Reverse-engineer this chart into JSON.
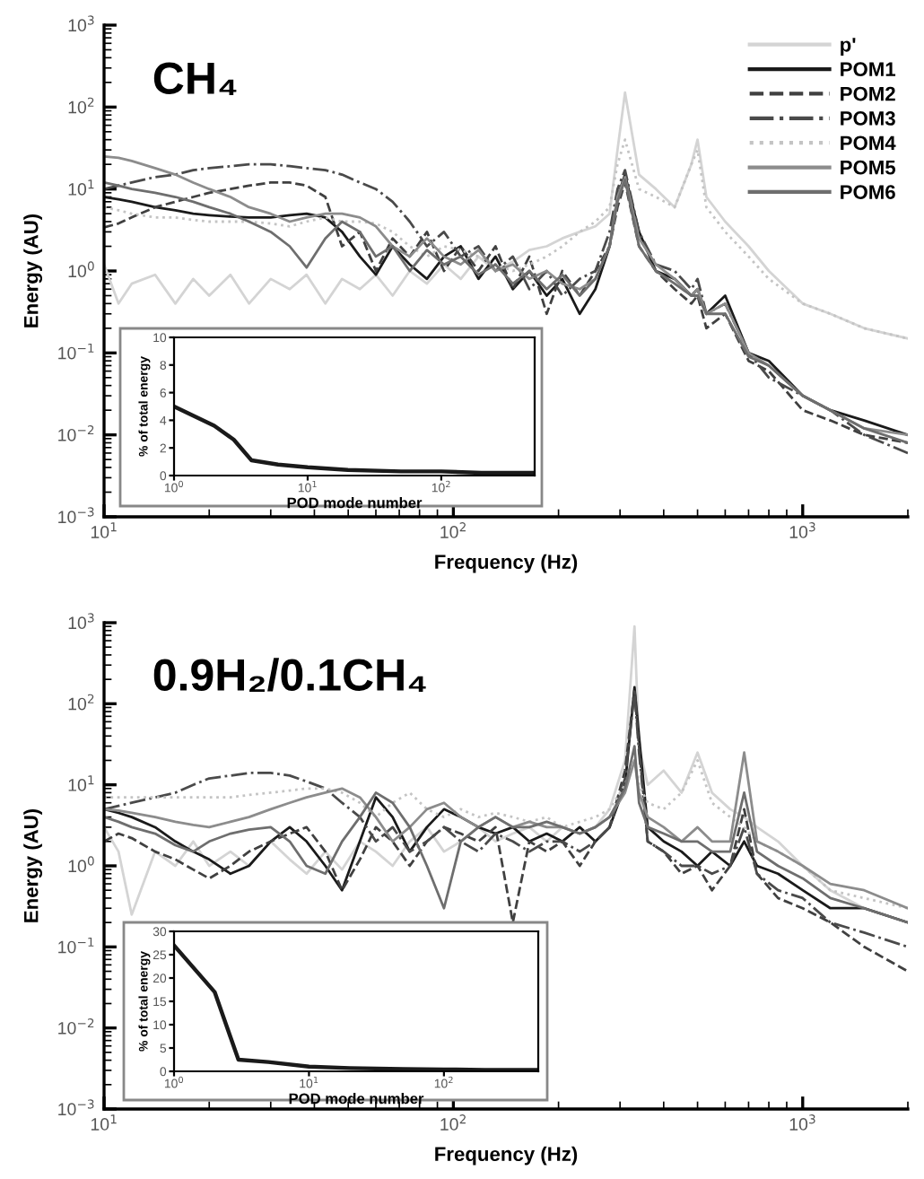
{
  "chart_data": [
    {
      "type": "line",
      "title": "CH₄",
      "xlabel": "Frequency (Hz)",
      "ylabel": "Energy (AU)",
      "log": "xy",
      "legend": "top right",
      "xlim": [
        10,
        2000
      ],
      "ylim": [
        0.001,
        1000
      ],
      "xticks": [
        {
          "value": 10,
          "label": "10$^{1}$"
        },
        {
          "value": 100,
          "label": "10$^{2}$"
        },
        {
          "value": 1000,
          "label": "10$^{3}$"
        }
      ],
      "yticks": [
        {
          "value": 0.001,
          "label": "10$^{−3}$"
        },
        {
          "value": 0.01,
          "label": "10$^{−2}$"
        },
        {
          "value": 0.1,
          "label": "10$^{−1}$"
        },
        {
          "value": 1,
          "label": "10$^{0}$"
        },
        {
          "value": 10,
          "label": "10$^{1}$"
        },
        {
          "value": 100,
          "label": "10$^{2}$"
        },
        {
          "value": 1000,
          "label": "10$^{3}$"
        }
      ],
      "x": [
        10,
        11,
        12,
        14,
        16,
        18,
        20,
        23,
        26,
        30,
        34,
        38,
        43,
        48,
        54,
        60,
        67,
        75,
        84,
        94,
        105,
        118,
        132,
        148,
        165,
        185,
        205,
        230,
        255,
        280,
        295,
        310,
        340,
        380,
        430,
        480,
        500,
        530,
        600,
        700,
        800,
        1000,
        1200,
        1500,
        2000
      ],
      "series": [
        {
          "name": "p'",
          "color": "#d4d4d4",
          "line_style": "solid",
          "values": [
            1.2,
            0.4,
            0.7,
            0.9,
            0.4,
            0.8,
            0.5,
            0.9,
            0.4,
            0.8,
            0.6,
            0.9,
            0.4,
            0.8,
            0.6,
            0.9,
            0.5,
            1.0,
            0.7,
            1.2,
            0.8,
            1.5,
            1.0,
            1.3,
            1.8,
            2.0,
            2.5,
            3,
            3.5,
            5,
            30,
            150,
            15,
            10,
            6,
            20,
            40,
            8,
            4,
            2,
            1,
            0.4,
            0.3,
            0.2,
            0.15
          ]
        },
        {
          "name": "POM1",
          "color": "#1a1a1a",
          "line_style": "solid",
          "values": [
            8,
            7.5,
            7,
            6,
            5.5,
            5,
            4.8,
            4.6,
            4.5,
            4.5,
            4.8,
            5,
            4.5,
            3,
            1.5,
            0.9,
            2,
            1.2,
            0.8,
            1.5,
            2,
            0.8,
            1.5,
            0.6,
            1,
            0.5,
            0.8,
            0.3,
            0.6,
            2,
            8,
            15,
            3,
            1,
            0.8,
            0.5,
            0.6,
            0.3,
            0.5,
            0.1,
            0.08,
            0.03,
            0.02,
            0.015,
            0.01
          ]
        },
        {
          "name": "POM2",
          "color": "#404040",
          "line_style": "dashed",
          "values": [
            3.4,
            3.8,
            4.5,
            6,
            7,
            8,
            9,
            10,
            11,
            12,
            12,
            11,
            8,
            2,
            3,
            1,
            2.5,
            1.5,
            3,
            1,
            2,
            1,
            2,
            0.6,
            1.5,
            0.3,
            1,
            0.5,
            1,
            2,
            6,
            12,
            2,
            1,
            0.6,
            0.4,
            0.5,
            0.2,
            0.3,
            0.08,
            0.06,
            0.02,
            0.015,
            0.01,
            0.008
          ]
        },
        {
          "name": "POM3",
          "color": "#4a4a4a",
          "line_style": "dashdot",
          "values": [
            10,
            11,
            12,
            14,
            15,
            17,
            18,
            19,
            20,
            20,
            19,
            18,
            17,
            15,
            12,
            10,
            7,
            4,
            2,
            3,
            1.5,
            2,
            1,
            1.5,
            0.6,
            1,
            0.5,
            0.8,
            1,
            3,
            10,
            17,
            3,
            1.2,
            1,
            0.6,
            0.8,
            0.3,
            0.4,
            0.1,
            0.05,
            0.03,
            0.02,
            0.01,
            0.006
          ]
        },
        {
          "name": "POM4",
          "color": "#c4c4c4",
          "line_style": "dotted",
          "values": [
            6,
            5.5,
            5,
            4.5,
            4.5,
            4.2,
            4,
            4,
            4,
            3.8,
            3.5,
            4,
            4.5,
            4,
            4,
            3.8,
            3,
            2,
            1.5,
            2,
            1.8,
            1.5,
            1.2,
            1,
            1.2,
            1.5,
            2,
            3,
            4,
            6,
            20,
            40,
            10,
            8,
            6,
            20,
            30,
            6,
            3,
            1.5,
            0.8,
            0.4,
            0.3,
            0.2,
            0.15
          ]
        },
        {
          "name": "POM5",
          "color": "#8c8c8c",
          "line_style": "solid",
          "values": [
            25,
            24,
            22,
            18,
            15,
            12,
            10,
            8,
            6,
            5,
            4,
            4.5,
            5,
            5,
            4.5,
            3.5,
            2,
            1.5,
            2.5,
            1.5,
            1.2,
            1.8,
            1,
            1.2,
            0.8,
            1,
            0.7,
            0.6,
            0.8,
            2,
            8,
            14,
            2.5,
            1.2,
            0.8,
            0.5,
            0.6,
            0.3,
            0.4,
            0.1,
            0.07,
            0.03,
            0.02,
            0.012,
            0.01
          ]
        },
        {
          "name": "POM6",
          "color": "#6e6e6e",
          "line_style": "solid",
          "values": [
            12,
            11,
            10,
            9,
            8,
            7,
            6,
            5,
            4,
            3,
            2,
            1.1,
            2.5,
            4,
            3,
            1.5,
            2,
            1,
            1.8,
            1.2,
            1.5,
            0.9,
            1.2,
            0.7,
            1,
            0.6,
            0.9,
            0.5,
            0.8,
            2,
            7,
            13,
            2,
            1,
            0.7,
            0.5,
            0.5,
            0.3,
            0.3,
            0.09,
            0.07,
            0.03,
            0.02,
            0.012,
            0.008
          ]
        }
      ]
    },
    {
      "type": "line",
      "xlabel": "POD mode number",
      "ylabel": "% of total energy",
      "log": "x",
      "xlim": [
        1,
        500
      ],
      "ylim": [
        0,
        10
      ],
      "xticks": [
        {
          "value": 1,
          "label": "10$^{0}$"
        },
        {
          "value": 10,
          "label": "10$^{1}$"
        },
        {
          "value": 100,
          "label": "10$^{2}$"
        }
      ],
      "yticks": [
        0,
        2,
        4,
        6,
        8,
        10
      ],
      "x": [
        1,
        2,
        2.8,
        3.8,
        6,
        10,
        20,
        50,
        100,
        200,
        500
      ],
      "series": [
        {
          "color": "#1a1a1a",
          "line_style": "solid",
          "values": [
            5,
            3.6,
            2.6,
            1.1,
            0.8,
            0.6,
            0.4,
            0.3,
            0.3,
            0.2,
            0.2
          ]
        }
      ]
    },
    {
      "type": "line",
      "title": "0.9H₂/0.1CH₄",
      "xlabel": "Frequency (Hz)",
      "ylabel": "Energy (AU)",
      "log": "xy",
      "xlim": [
        10,
        2000
      ],
      "ylim": [
        0.001,
        1000
      ],
      "xticks": [
        {
          "value": 10,
          "label": "10$^{1}$"
        },
        {
          "value": 100,
          "label": "10$^{2}$"
        },
        {
          "value": 1000,
          "label": "10$^{3}$"
        }
      ],
      "yticks": [
        {
          "value": 0.001,
          "label": "10$^{−3}$"
        },
        {
          "value": 0.01,
          "label": "10$^{−2}$"
        },
        {
          "value": 0.1,
          "label": "10$^{−1}$"
        },
        {
          "value": 1,
          "label": "10$^{0}$"
        },
        {
          "value": 10,
          "label": "10$^{1}$"
        },
        {
          "value": 100,
          "label": "10$^{2}$"
        },
        {
          "value": 1000,
          "label": "10$^{3}$"
        }
      ],
      "x": [
        10,
        11,
        12,
        14,
        16,
        18,
        20,
        23,
        26,
        30,
        34,
        38,
        43,
        48,
        54,
        60,
        67,
        75,
        84,
        94,
        105,
        118,
        132,
        148,
        165,
        185,
        205,
        230,
        255,
        280,
        310,
        330,
        340,
        360,
        400,
        450,
        500,
        550,
        620,
        680,
        740,
        850,
        1000,
        1200,
        1500,
        2000
      ],
      "series": [
        {
          "color": "#d4d4d4",
          "line_style": "solid",
          "values": [
            3,
            1.5,
            0.25,
            1.5,
            1,
            2,
            1,
            1.5,
            1,
            2,
            1.2,
            0.8,
            1.5,
            0.9,
            2,
            1.5,
            1,
            2,
            3,
            1.5,
            2,
            3,
            2,
            2.5,
            3,
            2,
            3,
            2.5,
            3,
            5,
            20,
            900,
            30,
            10,
            15,
            8,
            25,
            8,
            5,
            4,
            3,
            2,
            1,
            0.5,
            0.3,
            0.2
          ]
        },
        {
          "color": "#1a1a1a",
          "line_style": "solid",
          "values": [
            5,
            4.5,
            4,
            3,
            2,
            1.5,
            1.2,
            0.8,
            1,
            2,
            3,
            2,
            1,
            0.5,
            2,
            7,
            4,
            1.5,
            3,
            5,
            4,
            3,
            2.5,
            3,
            2,
            2.5,
            2,
            3,
            2,
            3,
            10,
            160,
            40,
            3,
            2,
            1.5,
            1,
            1.5,
            1,
            2,
            1,
            0.8,
            0.5,
            0.3,
            0.3,
            0.2
          ]
        },
        {
          "color": "#404040",
          "line_style": "dashed",
          "values": [
            2,
            2.5,
            2.2,
            1.5,
            1.2,
            0.9,
            0.7,
            1,
            1.5,
            2,
            2.5,
            3,
            1.5,
            0.5,
            1.2,
            3,
            2,
            1,
            2,
            3,
            2.5,
            2,
            3,
            0.2,
            2,
            1.5,
            2,
            1,
            2,
            3,
            15,
            150,
            30,
            2,
            1.5,
            0.8,
            1,
            0.5,
            1,
            5,
            0.8,
            0.4,
            0.3,
            0.2,
            0.1,
            0.05
          ]
        },
        {
          "color": "#4a4a4a",
          "line_style": "dashdot",
          "values": [
            5,
            5.5,
            6,
            7,
            8,
            10,
            12,
            13,
            14,
            14,
            13,
            11,
            9,
            6,
            4,
            2,
            3,
            1.5,
            2,
            3,
            2,
            1.5,
            2.5,
            2,
            1.5,
            2,
            2,
            1.5,
            2,
            3,
            12,
            140,
            25,
            2,
            1.5,
            1,
            1,
            0.8,
            1,
            3,
            0.8,
            0.5,
            0.4,
            0.2,
            0.15,
            0.1
          ]
        },
        {
          "color": "#c4c4c4",
          "line_style": "dotted",
          "values": [
            7,
            7,
            7,
            7,
            7,
            7,
            7,
            7,
            7.5,
            8,
            8.5,
            9,
            9,
            8,
            6,
            4,
            6,
            8,
            5,
            4,
            5,
            4,
            4.5,
            4,
            3.5,
            4,
            3,
            3.5,
            4,
            5,
            10,
            20,
            10,
            6,
            5,
            8,
            20,
            6,
            4,
            3,
            2,
            1.5,
            1,
            0.5,
            0.4,
            0.3
          ]
        },
        {
          "color": "#8c8c8c",
          "line_style": "solid",
          "values": [
            5,
            4.8,
            4.5,
            4,
            3.5,
            3.2,
            3,
            3.5,
            4,
            5,
            6,
            7,
            8,
            9,
            7,
            4,
            2,
            3,
            5,
            6,
            4,
            3,
            4,
            3,
            3.5,
            3,
            3,
            2.5,
            3,
            4,
            8,
            20,
            8,
            4,
            3,
            2,
            3,
            2,
            2,
            25,
            2,
            1.5,
            1,
            0.6,
            0.5,
            0.3
          ]
        },
        {
          "color": "#6e6e6e",
          "line_style": "solid",
          "values": [
            4,
            3.5,
            3,
            2.5,
            1.8,
            1.5,
            2,
            2.5,
            2.8,
            3,
            2,
            1,
            0.8,
            2,
            4,
            8,
            6,
            3,
            1,
            0.3,
            2,
            3,
            4,
            3,
            3,
            3.5,
            3,
            2.5,
            3,
            4,
            9,
            30,
            6,
            3,
            2.5,
            2,
            2,
            1.5,
            1.5,
            8,
            1.5,
            1,
            0.7,
            0.4,
            0.3,
            0.2
          ]
        }
      ]
    },
    {
      "type": "line",
      "xlabel": "POD mode number",
      "ylabel": "% of total energy",
      "log": "x",
      "xlim": [
        1,
        500
      ],
      "ylim": [
        0,
        30
      ],
      "xticks": [
        {
          "value": 1,
          "label": "10$^{0}$"
        },
        {
          "value": 10,
          "label": "10$^{1}$"
        },
        {
          "value": 100,
          "label": "10$^{2}$"
        }
      ],
      "yticks": [
        0,
        5,
        10,
        15,
        20,
        25,
        30
      ],
      "x": [
        1,
        2,
        3,
        5,
        10,
        20,
        50,
        100,
        200,
        500
      ],
      "series": [
        {
          "color": "#1a1a1a",
          "line_style": "solid",
          "values": [
            27,
            17,
            2.5,
            2,
            1,
            0.7,
            0.5,
            0.4,
            0.3,
            0.3
          ]
        }
      ]
    }
  ]
}
